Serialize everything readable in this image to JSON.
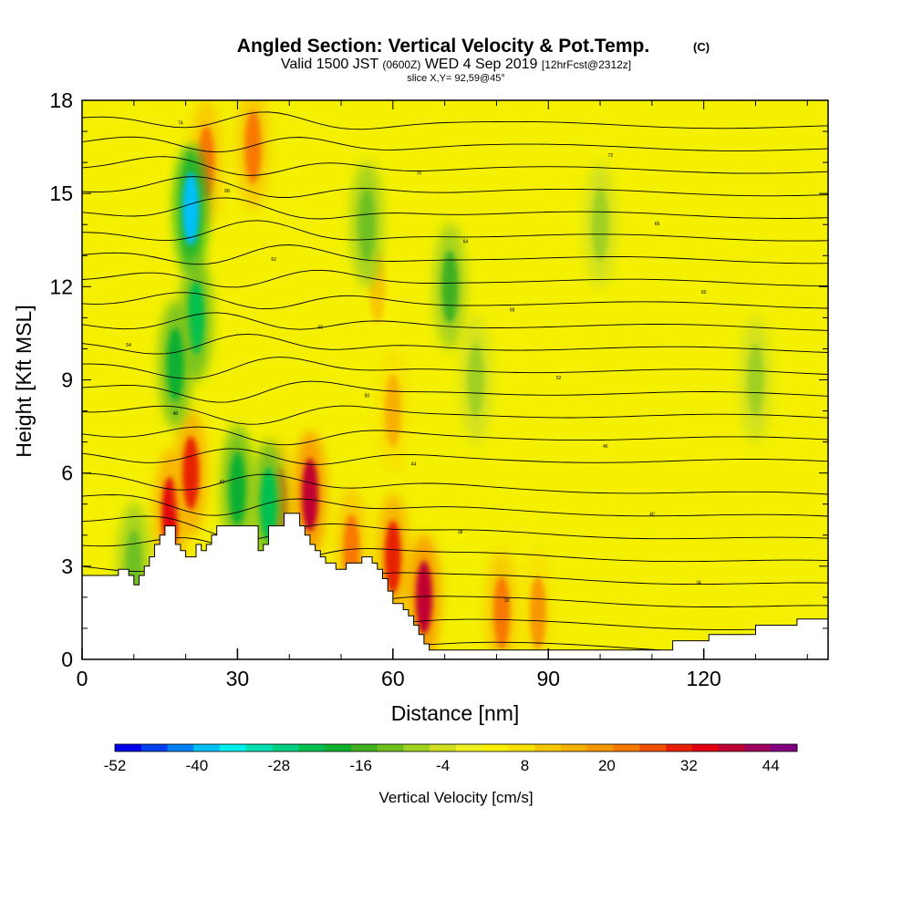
{
  "chart_data": {
    "type": "heatmap",
    "title": "Angled Section: Vertical Velocity & Pot.Temp.",
    "title_suffix": "(C)",
    "subtitle_valid": "Valid 1500 JST",
    "subtitle_utc": "(0600Z)",
    "subtitle_date": "WED 4 Sep 2019",
    "subtitle_fcst": "[12hrFcst@2312z]",
    "subtitle_slice": "slice X,Y= 92,59@45°",
    "xlabel": "Distance [nm]",
    "ylabel": "Height [Kft MSL]",
    "xlim": [
      0,
      144
    ],
    "ylim": [
      0,
      18
    ],
    "x_ticks": [
      0,
      30,
      60,
      90,
      120
    ],
    "x_tick_labels": [
      "0",
      "30",
      "60",
      "90",
      "120"
    ],
    "y_ticks": [
      0,
      3,
      6,
      9,
      12,
      15,
      18
    ],
    "y_tick_labels": [
      "0",
      "3",
      "6",
      "9",
      "12",
      "15",
      "18"
    ],
    "colorbar": {
      "label": "Vertical Velocity [cm/s]",
      "tick_labels": [
        "-52",
        "-40",
        "-28",
        "-16",
        "-4",
        "8",
        "20",
        "32",
        "44"
      ],
      "min": -52,
      "max": 52,
      "step": 4,
      "colors": [
        "#0000ee",
        "#0040f0",
        "#0080f5",
        "#00c0f8",
        "#00f0f0",
        "#00e0b0",
        "#00d080",
        "#00c050",
        "#10b030",
        "#40b020",
        "#70c020",
        "#a0d020",
        "#d0e020",
        "#f0f020",
        "#f8f000",
        "#f8e000",
        "#f8c800",
        "#f8b000",
        "#f89800",
        "#f87800",
        "#f05000",
        "#e82000",
        "#e00010",
        "#c00030",
        "#a00060",
        "#800080"
      ]
    },
    "terrain_profile": [
      [
        0,
        2.7
      ],
      [
        5,
        2.7
      ],
      [
        7,
        2.9
      ],
      [
        9,
        2.7
      ],
      [
        10,
        2.4
      ],
      [
        11,
        2.7
      ],
      [
        12,
        3.0
      ],
      [
        13,
        3.3
      ],
      [
        14,
        3.7
      ],
      [
        15,
        4.0
      ],
      [
        16,
        4.3
      ],
      [
        17,
        4.3
      ],
      [
        18,
        3.7
      ],
      [
        19,
        3.5
      ],
      [
        20,
        3.3
      ],
      [
        21,
        3.3
      ],
      [
        22,
        3.7
      ],
      [
        23,
        3.5
      ],
      [
        24,
        3.7
      ],
      [
        25,
        4.0
      ],
      [
        26,
        4.3
      ],
      [
        30,
        4.3
      ],
      [
        33,
        4.3
      ],
      [
        34,
        3.5
      ],
      [
        35,
        3.7
      ],
      [
        36,
        4.3
      ],
      [
        38,
        4.3
      ],
      [
        39,
        4.7
      ],
      [
        41,
        4.7
      ],
      [
        42,
        4.3
      ],
      [
        43,
        4.0
      ],
      [
        44,
        3.7
      ],
      [
        45,
        3.5
      ],
      [
        46,
        3.3
      ],
      [
        47,
        3.1
      ],
      [
        48,
        3.1
      ],
      [
        49,
        2.9
      ],
      [
        50,
        2.9
      ],
      [
        51,
        3.1
      ],
      [
        53,
        3.1
      ],
      [
        54,
        3.3
      ],
      [
        55,
        3.3
      ],
      [
        56,
        3.1
      ],
      [
        57,
        2.9
      ],
      [
        58,
        2.6
      ],
      [
        59,
        2.2
      ],
      [
        60,
        1.8
      ],
      [
        62,
        1.6
      ],
      [
        63,
        1.4
      ],
      [
        64,
        1.1
      ],
      [
        65,
        0.8
      ],
      [
        66,
        0.5
      ],
      [
        67,
        0.3
      ],
      [
        72,
        0.3
      ],
      [
        95,
        0.3
      ],
      [
        113,
        0.3
      ],
      [
        114,
        0.6
      ],
      [
        120,
        0.6
      ],
      [
        121,
        0.8
      ],
      [
        129,
        0.8
      ],
      [
        130,
        1.1
      ],
      [
        136,
        1.1
      ],
      [
        138,
        1.3
      ],
      [
        144,
        1.3
      ]
    ],
    "updraft_cells": [
      {
        "x": 17,
        "z": 4.7,
        "w": 36
      },
      {
        "x": 21,
        "z": 6.0,
        "w": 32
      },
      {
        "x": 24,
        "z": 16.0,
        "w": 24
      },
      {
        "x": 33,
        "z": 16.5,
        "w": 24
      },
      {
        "x": 38,
        "z": 5.0,
        "w": 28
      },
      {
        "x": 44,
        "z": 5.3,
        "w": 40
      },
      {
        "x": 52,
        "z": 3.5,
        "w": 24
      },
      {
        "x": 60,
        "z": 3.3,
        "w": 32
      },
      {
        "x": 66,
        "z": 2.0,
        "w": 40
      },
      {
        "x": 57,
        "z": 12.0,
        "w": 12
      },
      {
        "x": 60,
        "z": 8.0,
        "w": 16
      },
      {
        "x": 81,
        "z": 1.5,
        "w": 24
      },
      {
        "x": 88,
        "z": 1.5,
        "w": 20
      }
    ],
    "downdraft_cells": [
      {
        "x": 21,
        "z": 14.5,
        "w": -40
      },
      {
        "x": 22,
        "z": 11.0,
        "w": -24
      },
      {
        "x": 18,
        "z": 9.5,
        "w": -20
      },
      {
        "x": 30,
        "z": 5.5,
        "w": -20
      },
      {
        "x": 36,
        "z": 5.0,
        "w": -24
      },
      {
        "x": 10,
        "z": 3.0,
        "w": -12
      },
      {
        "x": 55,
        "z": 14.0,
        "w": -12
      },
      {
        "x": 71,
        "z": 12.0,
        "w": -16
      },
      {
        "x": 76,
        "z": 9.0,
        "w": -8
      },
      {
        "x": 130,
        "z": 9.0,
        "w": -8
      },
      {
        "x": 100,
        "z": 14.0,
        "w": -6
      }
    ],
    "theta_contours": {
      "base_height": 0.8,
      "spacing": 0.72,
      "count": 24,
      "labels": [
        "28",
        "30",
        "32",
        "34",
        "36",
        "38",
        "40",
        "42",
        "44",
        "46",
        "48",
        "50",
        "52",
        "54",
        "56",
        "58",
        "60",
        "62",
        "64",
        "66",
        "68",
        "70",
        "72",
        "74"
      ]
    }
  }
}
